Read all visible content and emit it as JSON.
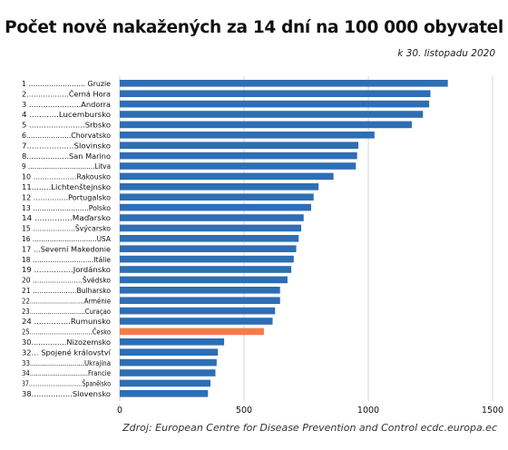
{
  "chart_data": {
    "type": "bar",
    "orientation": "horizontal",
    "title": "Počet nově nakažených za 14 dní na 100 000 obyvatel",
    "subtitle": "k 30. listopadu 2020",
    "source": "Zdroj: European Centre for Disease Prevention and Control ecdc.europa.ec",
    "categories": [
      "1 ......................... Gruzie",
      "2..................Černá Hora",
      "3 ......................Andorra",
      "4 ............Lucembursko",
      "5 .......................Srbsko",
      "6....................Chorvatsko",
      "7...................Slovinsko",
      "8..................San Marino",
      "9 ................................Litva",
      "10 ...................Rakousko",
      "11........Lichtenštejnsko",
      "12 ...............Portugalsko",
      "13 .........................Polsko",
      "14 ...............Maďarsko",
      "15 ...................Švýcarsko",
      "16 ..............................USA",
      "17 ...Severní Makedonie",
      "18 ............................Itálie",
      "19 ................Jordánsko",
      "20 .......................Švédsko",
      "21 ....................Bulharsko",
      "22...........................Arménie",
      "23............................Curaçao",
      "24 ...............Rumunsko",
      "25................................Česko",
      "30...............Nizozemsko",
      "32... Spojené království",
      "33...........................Ukrajina",
      "34.............................Francie",
      "37..............................Španělsko",
      "38.................Slovensko"
    ],
    "values": [
      1320,
      1250,
      1245,
      1220,
      1175,
      1025,
      960,
      955,
      950,
      860,
      800,
      780,
      770,
      740,
      730,
      720,
      710,
      700,
      690,
      675,
      645,
      645,
      625,
      615,
      580,
      420,
      395,
      390,
      385,
      365,
      355
    ],
    "highlight_category": "25................................Česko",
    "xlim": [
      0,
      1500
    ],
    "xticks": [
      0,
      500,
      1000,
      1500
    ],
    "grid": "vertical",
    "colors": {
      "bar": "#2e6eb5",
      "highlight": "#f47c4c",
      "grid": "#d6d6d6",
      "text": "#111111"
    }
  }
}
